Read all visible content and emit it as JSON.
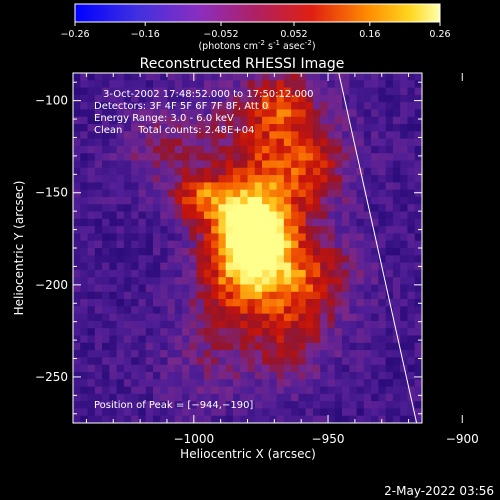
{
  "colorbar": {
    "ticks": [
      "-0.26",
      "-0.16",
      "-0.052",
      "0.052",
      "0.16",
      "0.26"
    ],
    "unit_main": "(photons cm",
    "unit_sup1": "-2",
    "unit_mid1": " s",
    "unit_sup2": "-1",
    "unit_mid2": " asec",
    "unit_sup3": "-2",
    "unit_end": ")"
  },
  "chart_data": {
    "type": "heatmap",
    "title": "Reconstructed RHESSI Image",
    "xlabel": "Heliocentric X (arcsec)",
    "ylabel": "Heliocentric Y (arcsec)",
    "xlim": [
      -1045,
      -915
    ],
    "ylim": [
      -275,
      -85
    ],
    "xticks": [
      -1000,
      -950,
      -900
    ],
    "yticks": [
      -100,
      -150,
      -200,
      -250
    ],
    "xtick_labels": [
      "−1000",
      "−950",
      "−900"
    ],
    "ytick_labels": [
      "−100",
      "−150",
      "−200",
      "−250"
    ],
    "clim": [
      -0.26,
      0.26
    ],
    "annotations": {
      "line1": "3-Oct-2002 17:48:52.000 to 17:50:12.000",
      "line2": "Detectors: 3F 4F 5F 6F 7F 8F, Att 0",
      "line3": "Energy Range: 3.0 - 6.0 keV",
      "line4": "Clean     Total counts: 2.48E+04",
      "peak": "Position of Peak = [−944,−190]"
    },
    "peak_position": [
      -944,
      -190
    ],
    "limb_line": [
      [
        -946,
        -85
      ],
      [
        -917,
        -275
      ]
    ]
  },
  "footer": {
    "timestamp": "2-May-2022 03:56"
  }
}
